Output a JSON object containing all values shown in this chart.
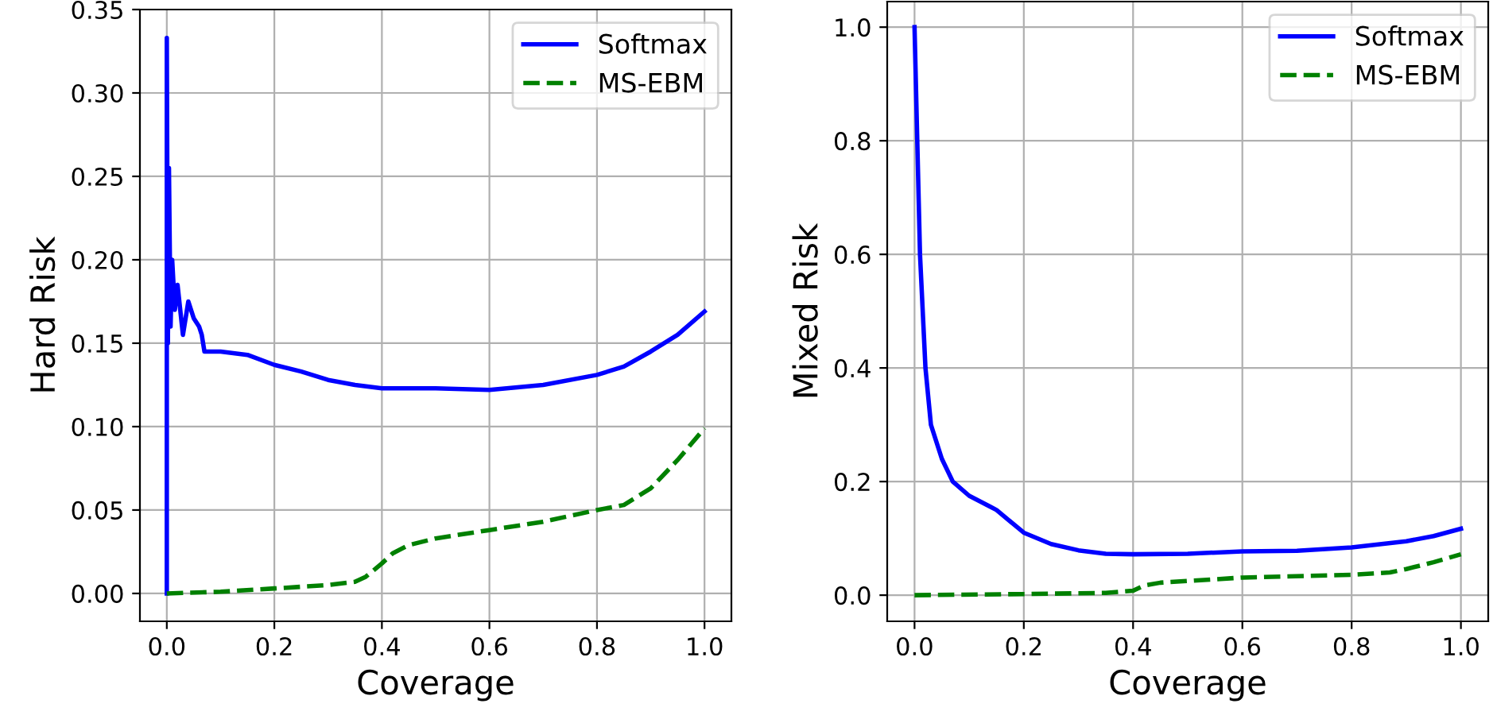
{
  "chart_data": [
    {
      "type": "line",
      "xlabel": "Coverage",
      "ylabel": "Hard Risk",
      "xlim": [
        -0.05,
        1.05
      ],
      "ylim": [
        -0.0167,
        0.35
      ],
      "xticks": [
        {
          "value": 0,
          "label": "0.0"
        },
        {
          "value": 0.2,
          "label": "0.2"
        },
        {
          "value": 0.4,
          "label": "0.4"
        },
        {
          "value": 0.6,
          "label": "0.6"
        },
        {
          "value": 0.8,
          "label": "0.8"
        },
        {
          "value": 1,
          "label": "1.0"
        }
      ],
      "yticks": [
        {
          "value": 0,
          "label": "0.00"
        },
        {
          "value": 0.05,
          "label": "0.05"
        },
        {
          "value": 0.1,
          "label": "0.10"
        },
        {
          "value": 0.15,
          "label": "0.15"
        },
        {
          "value": 0.2,
          "label": "0.20"
        },
        {
          "value": 0.25,
          "label": "0.25"
        },
        {
          "value": 0.3,
          "label": "0.30"
        },
        {
          "value": 0.35,
          "label": "0.35"
        }
      ],
      "grid": true,
      "legend": "top right",
      "series": [
        {
          "name": "Softmax",
          "color": "#0000ff",
          "line_style": "solid",
          "x": [
            0,
            0,
            0.002,
            0.004,
            0.007,
            0.01,
            0.015,
            0.02,
            0.03,
            0.04,
            0.05,
            0.06,
            0.065,
            0.07,
            0.1,
            0.15,
            0.2,
            0.25,
            0.3,
            0.35,
            0.4,
            0.5,
            0.6,
            0.7,
            0.8,
            0.85,
            0.9,
            0.95,
            1.0
          ],
          "values": [
            0,
            0.333,
            0.15,
            0.255,
            0.16,
            0.2,
            0.17,
            0.185,
            0.155,
            0.175,
            0.165,
            0.16,
            0.155,
            0.145,
            0.145,
            0.143,
            0.137,
            0.133,
            0.128,
            0.125,
            0.123,
            0.123,
            0.122,
            0.125,
            0.131,
            0.136,
            0.145,
            0.155,
            0.169
          ]
        },
        {
          "name": "MS-EBM",
          "color": "#008000",
          "line_style": "dashed",
          "x": [
            0,
            0.1,
            0.2,
            0.3,
            0.35,
            0.37,
            0.4,
            0.42,
            0.45,
            0.5,
            0.6,
            0.7,
            0.8,
            0.85,
            0.9,
            0.95,
            1.0
          ],
          "values": [
            0,
            0.001,
            0.003,
            0.005,
            0.007,
            0.01,
            0.018,
            0.024,
            0.029,
            0.033,
            0.038,
            0.043,
            0.05,
            0.053,
            0.063,
            0.08,
            0.099
          ]
        }
      ]
    },
    {
      "type": "line",
      "xlabel": "Coverage",
      "ylabel": "Mixed Risk",
      "xlim": [
        -0.05,
        1.05
      ],
      "ylim": [
        -0.046,
        1.045
      ],
      "xticks": [
        {
          "value": 0,
          "label": "0.0"
        },
        {
          "value": 0.2,
          "label": "0.2"
        },
        {
          "value": 0.4,
          "label": "0.4"
        },
        {
          "value": 0.6,
          "label": "0.6"
        },
        {
          "value": 0.8,
          "label": "0.8"
        },
        {
          "value": 1,
          "label": "1.0"
        }
      ],
      "yticks": [
        {
          "value": 0,
          "label": "0.0"
        },
        {
          "value": 0.2,
          "label": "0.2"
        },
        {
          "value": 0.4,
          "label": "0.4"
        },
        {
          "value": 0.6,
          "label": "0.6"
        },
        {
          "value": 0.8,
          "label": "0.8"
        },
        {
          "value": 1,
          "label": "1.0"
        }
      ],
      "grid": true,
      "legend": "top right",
      "series": [
        {
          "name": "Softmax",
          "color": "#0000ff",
          "line_style": "solid",
          "x": [
            0,
            0.005,
            0.01,
            0.02,
            0.03,
            0.05,
            0.07,
            0.1,
            0.14,
            0.15,
            0.2,
            0.25,
            0.3,
            0.35,
            0.4,
            0.5,
            0.6,
            0.7,
            0.8,
            0.9,
            0.95,
            1.0
          ],
          "values": [
            1.0,
            0.8,
            0.6,
            0.4,
            0.3,
            0.24,
            0.2,
            0.175,
            0.155,
            0.15,
            0.11,
            0.09,
            0.079,
            0.073,
            0.072,
            0.073,
            0.077,
            0.078,
            0.084,
            0.095,
            0.104,
            0.117
          ]
        },
        {
          "name": "MS-EBM",
          "color": "#008000",
          "line_style": "dashed",
          "x": [
            0,
            0.2,
            0.35,
            0.4,
            0.42,
            0.45,
            0.6,
            0.8,
            0.87,
            0.9,
            0.95,
            1.0
          ],
          "values": [
            0,
            0.002,
            0.004,
            0.008,
            0.017,
            0.022,
            0.031,
            0.036,
            0.04,
            0.046,
            0.058,
            0.072
          ]
        }
      ]
    }
  ]
}
